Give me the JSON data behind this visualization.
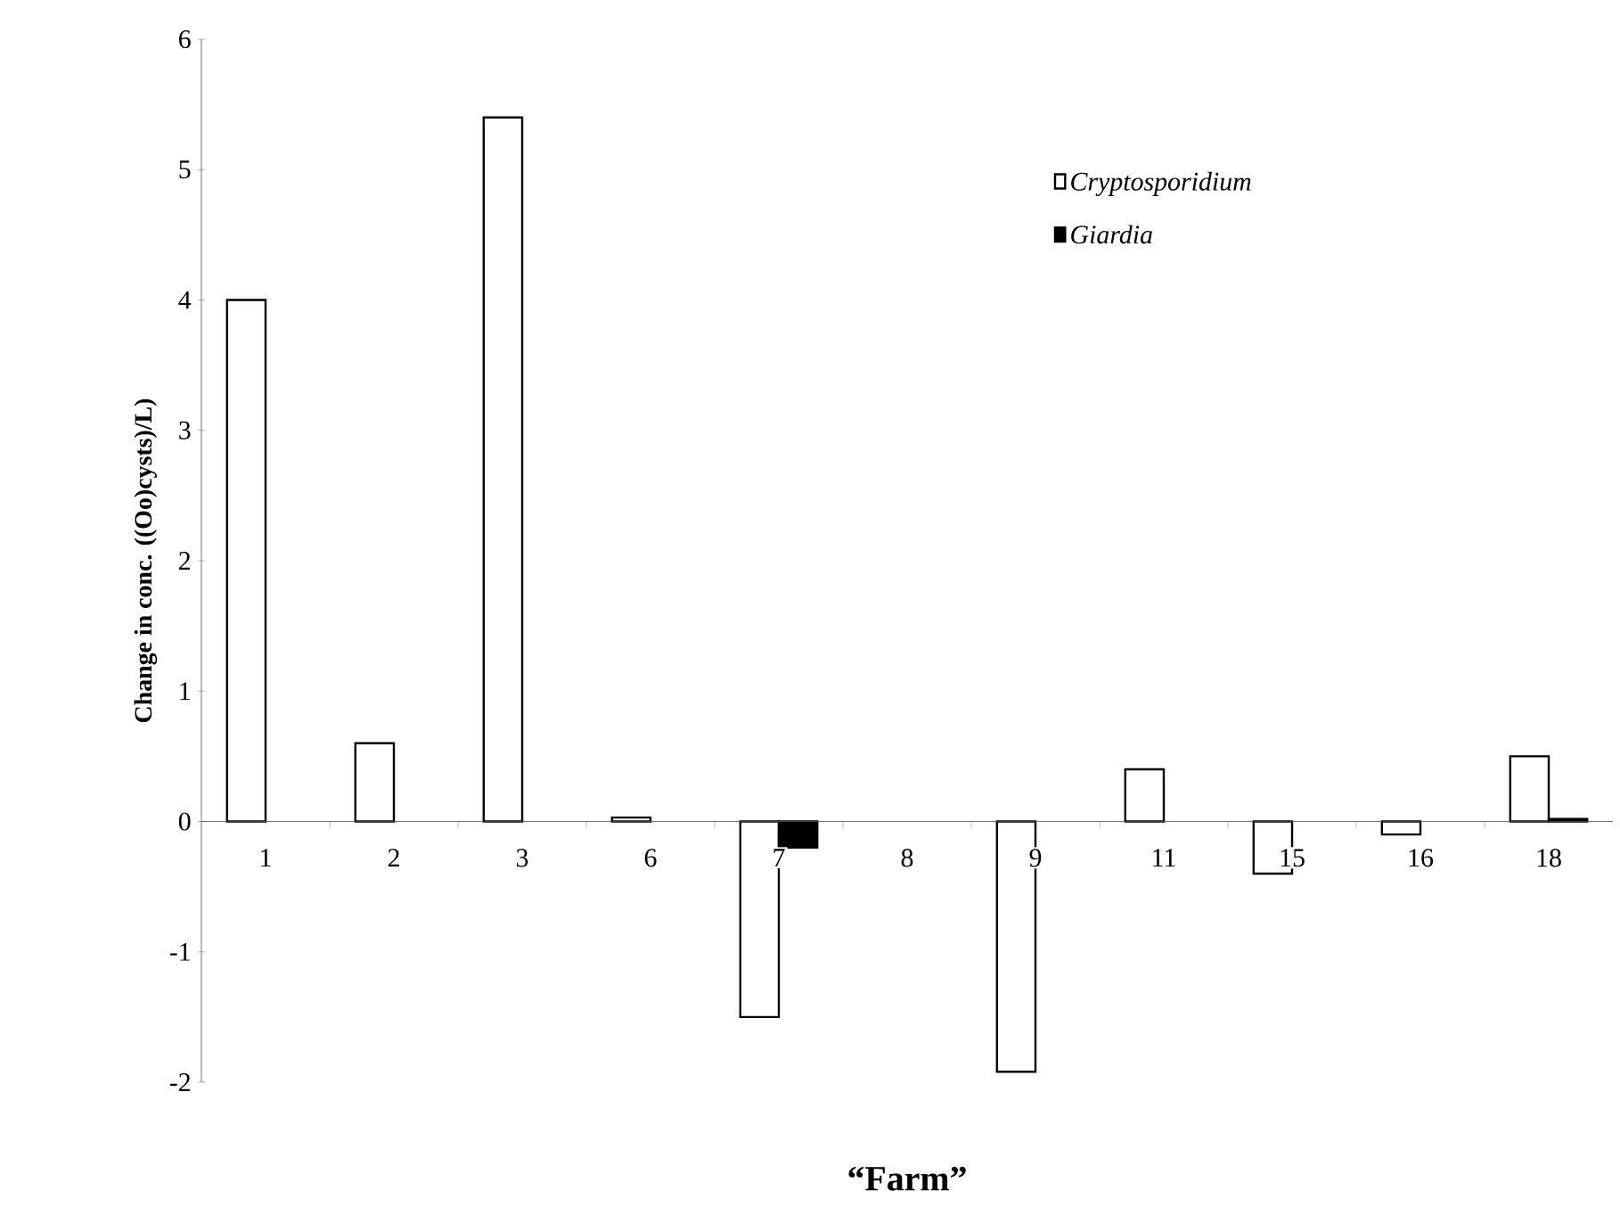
{
  "chart_data": {
    "type": "bar",
    "xlabel": "“Farm”",
    "ylabel": "Change in conc. ((Oo)cysts)/L)",
    "categories": [
      "1",
      "2",
      "3",
      "6",
      "7",
      "8",
      "9",
      "11",
      "15",
      "16",
      "18"
    ],
    "series": [
      {
        "name": "Cryptosporidium",
        "color": "#ffffff",
        "values": [
          4.0,
          0.6,
          5.4,
          0.03,
          -1.5,
          null,
          -1.92,
          0.4,
          -0.4,
          -0.1,
          0.5
        ]
      },
      {
        "name": "Giardia",
        "color": "#000000",
        "values": [
          null,
          null,
          null,
          null,
          -0.2,
          null,
          null,
          null,
          null,
          null,
          0.02
        ]
      }
    ],
    "ylim": [
      -2,
      6
    ],
    "yticks": [
      -2,
      -1,
      0,
      1,
      2,
      3,
      4,
      5,
      6
    ],
    "grid": false,
    "legend": "top right"
  }
}
